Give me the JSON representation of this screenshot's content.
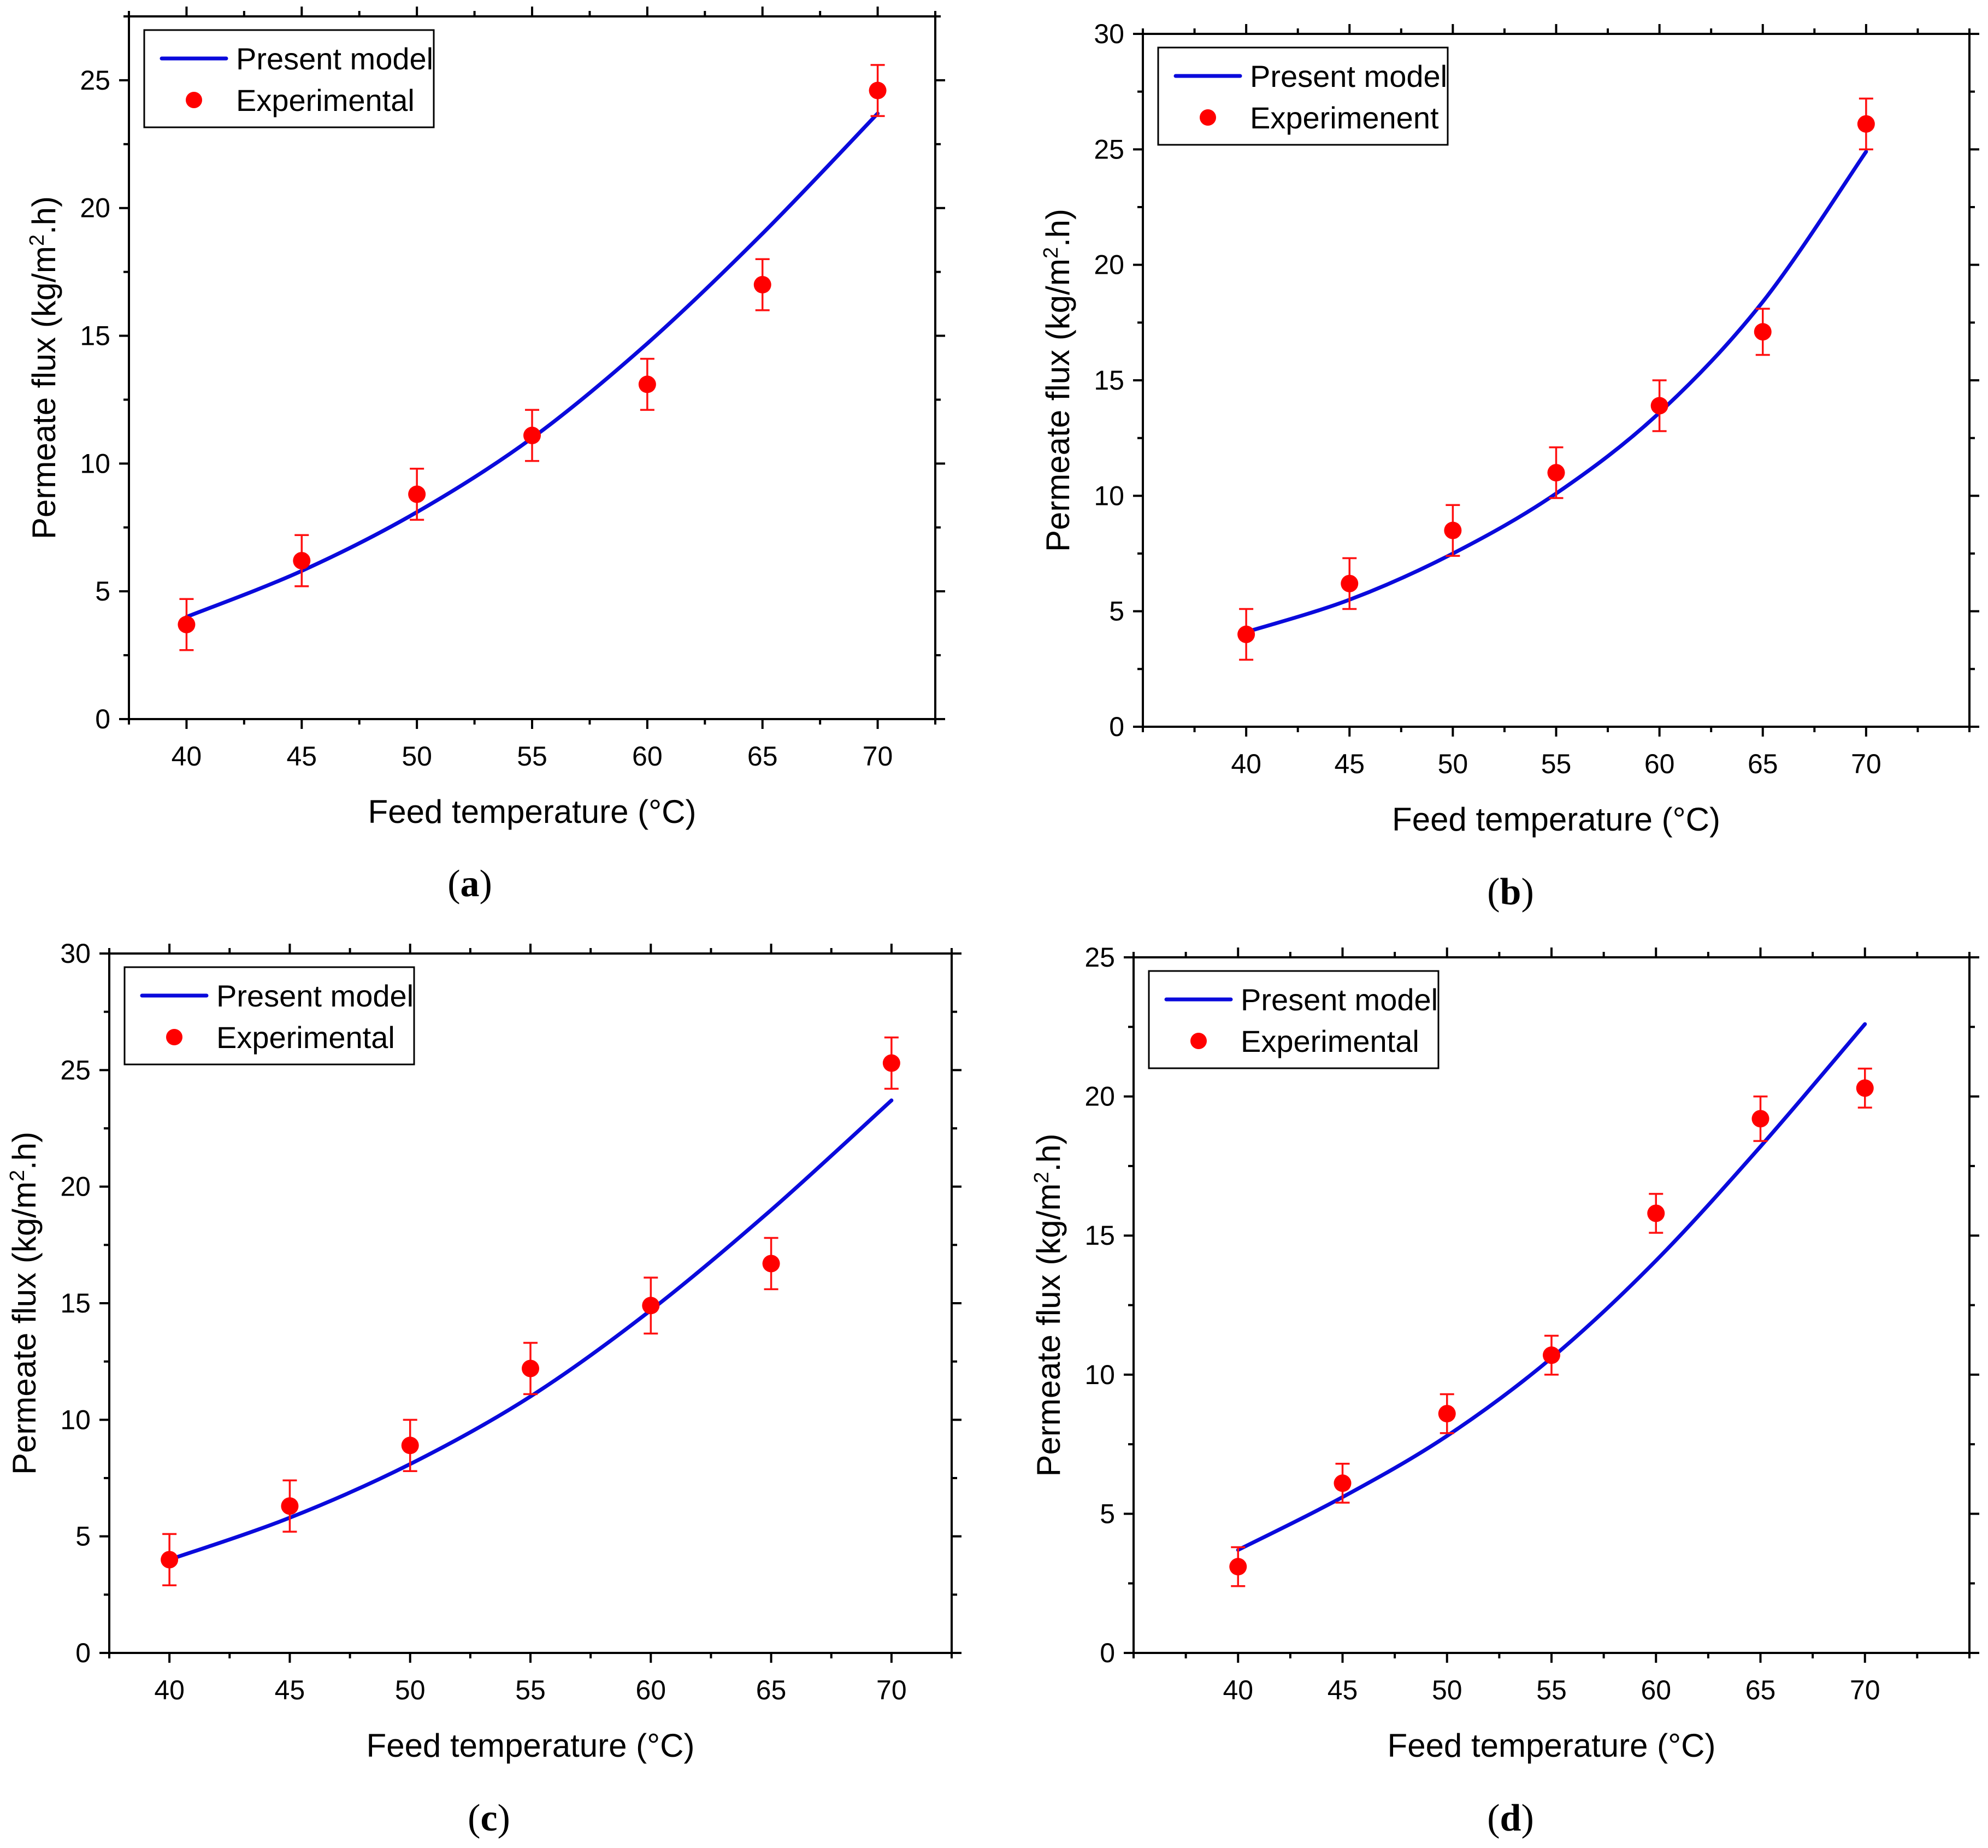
{
  "colors": {
    "model": "#0a0adc",
    "experimental": "#ff0000",
    "axis": "#000000"
  },
  "chart_data": [
    {
      "id": "a",
      "type": "scatter",
      "caption": "a",
      "xlabel": "Feed temperature (°C)",
      "ylabel_pre": "Permeate flux (kg/m",
      "ylabel_sup": "2",
      "ylabel_post": ".h)",
      "xlim": [
        37.5,
        72.5
      ],
      "ylim": [
        0,
        27.5
      ],
      "xticks": [
        40,
        45,
        50,
        55,
        60,
        65,
        70
      ],
      "yticks": [
        0,
        5,
        10,
        15,
        20,
        25
      ],
      "legend_position": "top-left",
      "series": [
        {
          "name": "Present model",
          "kind": "line",
          "x": [
            40,
            45,
            50,
            55,
            60,
            65,
            70
          ],
          "y": [
            4.0,
            5.8,
            8.1,
            11.0,
            14.7,
            19.0,
            23.7
          ]
        },
        {
          "name": "Experimental",
          "kind": "scatter",
          "x": [
            40,
            45,
            50,
            55,
            60,
            65,
            70
          ],
          "y": [
            3.7,
            6.2,
            8.8,
            11.1,
            13.1,
            17.0,
            24.6
          ],
          "error": [
            1.0,
            1.0,
            1.0,
            1.0,
            1.0,
            1.0,
            1.0
          ]
        }
      ]
    },
    {
      "id": "b",
      "type": "scatter",
      "caption": "b",
      "xlabel": "Feed temperature (°C)",
      "ylabel_pre": "Permeate flux (kg/m",
      "ylabel_sup": "2",
      "ylabel_post": ".h)",
      "xlim": [
        35,
        75
      ],
      "ylim": [
        0,
        30
      ],
      "xticks": [
        40,
        45,
        50,
        55,
        60,
        65,
        70
      ],
      "yticks": [
        0,
        5,
        10,
        15,
        20,
        25,
        30
      ],
      "legend_position": "top-left",
      "series": [
        {
          "name": "Present model",
          "kind": "line",
          "x": [
            40,
            45,
            50,
            55,
            60,
            65,
            70
          ],
          "y": [
            4.1,
            5.5,
            7.5,
            10.1,
            13.6,
            18.4,
            24.9
          ]
        },
        {
          "name": "Experimenent",
          "kind": "scatter",
          "x": [
            40,
            45,
            50,
            55,
            60,
            65,
            70
          ],
          "y": [
            4.0,
            6.2,
            8.5,
            11.0,
            13.9,
            17.1,
            26.1
          ],
          "error": [
            1.1,
            1.1,
            1.1,
            1.1,
            1.1,
            1.0,
            1.1
          ]
        }
      ]
    },
    {
      "id": "c",
      "type": "scatter",
      "caption": "c",
      "xlabel": "Feed temperature (°C)",
      "ylabel_pre": "Permeate flux (kg/m",
      "ylabel_sup": "2",
      "ylabel_post": ".h)",
      "xlim": [
        37.5,
        72.5
      ],
      "ylim": [
        0,
        30
      ],
      "xticks": [
        40,
        45,
        50,
        55,
        60,
        65,
        70
      ],
      "yticks": [
        0,
        5,
        10,
        15,
        20,
        25,
        30
      ],
      "legend_position": "top-left",
      "series": [
        {
          "name": "Present model",
          "kind": "line",
          "x": [
            40,
            45,
            50,
            55,
            60,
            65,
            70
          ],
          "y": [
            4.0,
            5.8,
            8.1,
            11.0,
            14.7,
            19.0,
            23.7
          ]
        },
        {
          "name": "Experimental",
          "kind": "scatter",
          "x": [
            40,
            45,
            50,
            55,
            60,
            65,
            70
          ],
          "y": [
            4.0,
            6.3,
            8.9,
            12.2,
            14.9,
            16.7,
            25.3
          ],
          "error": [
            1.1,
            1.1,
            1.1,
            1.1,
            1.2,
            1.1,
            1.1
          ]
        }
      ]
    },
    {
      "id": "d",
      "type": "scatter",
      "caption": "d",
      "xlabel": "Feed temperature (°C)",
      "ylabel_pre": "Permeate flux (kg/m",
      "ylabel_sup": "2",
      "ylabel_post": ".h)",
      "xlim": [
        35,
        75
      ],
      "ylim": [
        0,
        25
      ],
      "xticks": [
        40,
        45,
        50,
        55,
        60,
        65,
        70
      ],
      "yticks": [
        0,
        5,
        10,
        15,
        20,
        25
      ],
      "legend_position": "top-left",
      "series": [
        {
          "name": "Present model",
          "kind": "line",
          "x": [
            40,
            45,
            50,
            55,
            60,
            65,
            70
          ],
          "y": [
            3.7,
            5.6,
            7.8,
            10.6,
            14.1,
            18.2,
            22.6
          ]
        },
        {
          "name": "Experimental",
          "kind": "scatter",
          "x": [
            40,
            45,
            50,
            55,
            60,
            65,
            70
          ],
          "y": [
            3.1,
            6.1,
            8.6,
            10.7,
            15.8,
            19.2,
            20.3
          ],
          "error": [
            0.7,
            0.7,
            0.7,
            0.7,
            0.7,
            0.8,
            0.7
          ]
        }
      ]
    }
  ]
}
